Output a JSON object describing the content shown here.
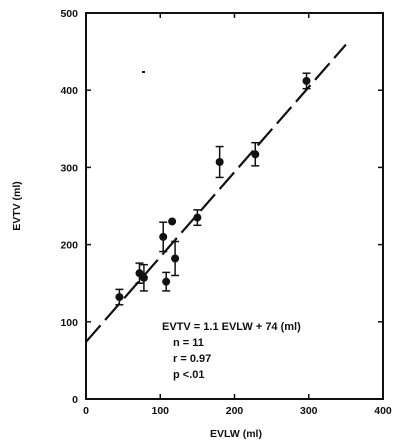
{
  "chart_data": {
    "type": "scatter",
    "title": "",
    "xlabel": "EVLW (ml)",
    "ylabel": "EVTV (ml)",
    "xlim": [
      0,
      400
    ],
    "ylim": [
      0,
      500
    ],
    "xticks": [
      0,
      100,
      200,
      300,
      400
    ],
    "yticks": [
      0,
      100,
      200,
      300,
      400,
      500
    ],
    "grid": false,
    "points": [
      {
        "x": 45,
        "y": 132,
        "err": 10
      },
      {
        "x": 72,
        "y": 163,
        "err": 13
      },
      {
        "x": 78,
        "y": 157,
        "err": 17
      },
      {
        "x": 104,
        "y": 210,
        "err": 19
      },
      {
        "x": 108,
        "y": 152,
        "err": 12
      },
      {
        "x": 116,
        "y": 230,
        "err": null
      },
      {
        "x": 120,
        "y": 182,
        "err": 22
      },
      {
        "x": 150,
        "y": 235,
        "err": 10
      },
      {
        "x": 180,
        "y": 307,
        "err": 20
      },
      {
        "x": 228,
        "y": 317,
        "err": 15
      },
      {
        "x": 297,
        "y": 412,
        "err": 10
      }
    ],
    "fit_line": {
      "slope": 1.1,
      "intercept": 74,
      "x_range": [
        0,
        350
      ],
      "style": "dashed"
    },
    "annotations": {
      "equation": "EVTV = 1.1 EVLW + 74 (ml)",
      "n": "n = 11",
      "r": "r = 0.97",
      "p": "p <.01"
    }
  }
}
